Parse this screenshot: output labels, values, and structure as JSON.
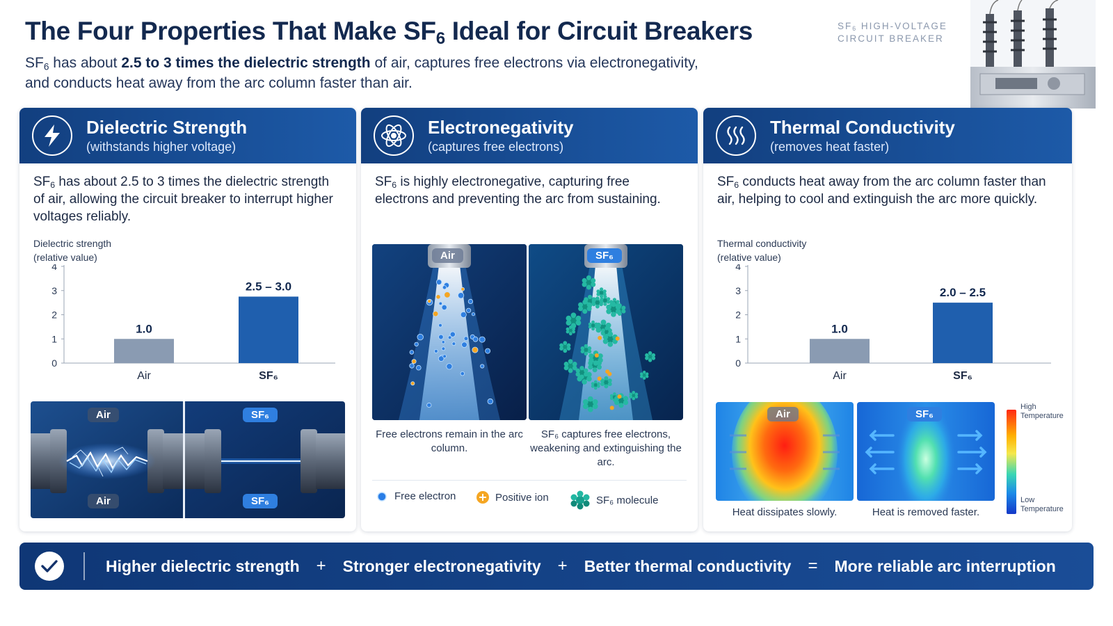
{
  "header": {
    "title_pre": "The Four Properties That Make SF",
    "title_sub": "6",
    "title_post": " Ideal for Circuit Breakers",
    "sub_sf": "SF",
    "sub_6": "6",
    "sub_p1": " has about ",
    "sub_b1": "2.5 to 3 times the dielectric strength",
    "sub_p2": " of air, captures free electrons via electronegativity,",
    "sub_line2": "and conducts heat away from the arc column faster than air.",
    "breaker_line1_pre": "SF",
    "breaker_line1_sub": "6",
    "breaker_line1_post": " HIGH-VOLTAGE",
    "breaker_line2": "CIRCUIT BREAKER"
  },
  "cards": {
    "dielectric": {
      "title": "Dielectric Strength",
      "subtitle": "(withstands higher voltage)",
      "desc_pre": "SF",
      "desc_sub": "6",
      "desc_post": " has about 2.5 to 3 times the dielectric strength of air, allowing the circuit breaker to interrupt higher voltages reliably.",
      "ylabel_1": "Dielectric strength",
      "ylabel_2": "(relative value)",
      "air_pill_top": "Air",
      "air_pill_bottom": "Air",
      "sf6_pill_top": "SF₆",
      "sf6_pill_bottom": "SF₆"
    },
    "electroneg": {
      "title": "Electronegativity",
      "subtitle": "(captures free electrons)",
      "desc_pre": "SF",
      "desc_sub": "6",
      "desc_post": " is highly electronegative, capturing free electrons and preventing the arc from sustaining.",
      "pic_air_label": "Air",
      "pic_sf6_label": "SF₆",
      "cap_air": "Free electrons remain in the arc column.",
      "cap_sf6": "SF₆ captures free electrons, weakening and extinguishing the arc.",
      "legend_electron": "Free electron",
      "legend_ion": "Positive ion",
      "legend_molecule": "SF₆ molecule"
    },
    "thermal": {
      "title": "Thermal Conductivity",
      "subtitle": "(removes heat faster)",
      "desc_pre": "SF",
      "desc_sub": "6",
      "desc_post": " conducts heat away from the arc column faster than air, helping to cool and extinguish the arc more quickly.",
      "ylabel_1": "Thermal conductivity",
      "ylabel_2": "(relative value)",
      "heat_air_label": "Air",
      "heat_sf6_label": "SF₆",
      "cap_air": "Heat dissipates slowly.",
      "cap_sf6": "Heat is removed faster.",
      "scale_high_1": "High",
      "scale_high_2": "Temperature",
      "scale_low_1": "Low",
      "scale_low_2": "Temperature"
    }
  },
  "chart_data": [
    {
      "type": "bar",
      "categories": [
        "Air",
        "SF₆"
      ],
      "values": [
        1.0,
        2.75
      ],
      "labels": [
        "1.0",
        "2.5 – 3.0"
      ],
      "yticks": [
        "0",
        "1",
        "2",
        "3",
        "4"
      ],
      "ylim": [
        0,
        4
      ],
      "ylabel": "Dielectric strength (relative value)",
      "colors": [
        "#8a9bb2",
        "#1f5fae"
      ]
    },
    {
      "type": "bar",
      "categories": [
        "Air",
        "SF₆"
      ],
      "values": [
        1.0,
        2.5
      ],
      "labels": [
        "1.0",
        "2.0 – 2.5"
      ],
      "yticks": [
        "0",
        "1",
        "2",
        "3",
        "4"
      ],
      "ylim": [
        0,
        4
      ],
      "ylabel": "Thermal conductivity (relative value)",
      "colors": [
        "#8a9bb2",
        "#1f5fae"
      ]
    }
  ],
  "footer": {
    "item1": "Higher dielectric strength",
    "op1": "+",
    "item2": "Stronger electronegativity",
    "op2": "+",
    "item3": "Better thermal conductivity",
    "op3": "=",
    "item4": "More reliable arc interruption"
  },
  "colors": {
    "brand_dark": "#13294f",
    "header_blue": "#1d5aa8",
    "bar_air": "#8a9bb2",
    "bar_sf6": "#1f5fae"
  }
}
